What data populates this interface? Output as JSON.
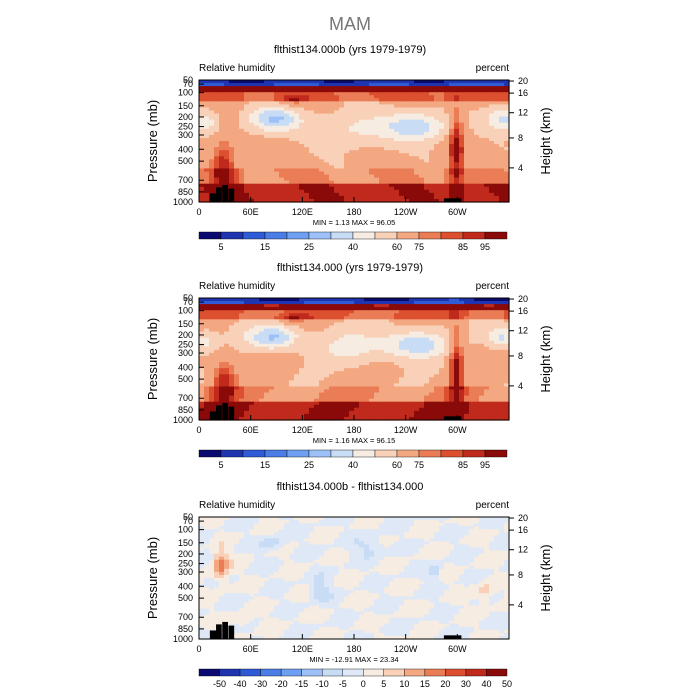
{
  "page_title": "MAM",
  "colors": {
    "title": "#777777",
    "axis": "#000000",
    "topography": "#000000",
    "rh_palette": [
      "#0a0a70",
      "#1f35b0",
      "#2f5cd6",
      "#4a7ee6",
      "#6f9ff0",
      "#9cc0f7",
      "#c9dcf5",
      "#f6ece2",
      "#f8d1b8",
      "#f4a882",
      "#ea7d56",
      "#dc5030",
      "#c02a1c",
      "#8a0a0a"
    ],
    "diff_palette": [
      "#0a0a70",
      "#1f35b0",
      "#2f5cd6",
      "#4a7ee6",
      "#6f9ff0",
      "#9cc0f7",
      "#c9dcf5",
      "#dfe8f6",
      "#f6ece2",
      "#f8d1b8",
      "#f4a882",
      "#ea7d56",
      "#dc5030",
      "#c02a1c",
      "#8a0a0a"
    ]
  },
  "chart_data": [
    {
      "type": "heatmap",
      "title": "flthist134.000b (yrs 1979-1979)",
      "left_label": "Relative humidity",
      "right_label": "percent",
      "ylabel": "Pressure (mb)",
      "ylabel_right": "Height (km)",
      "x_ticks": [
        "0",
        "60E",
        "120E",
        "180",
        "120W",
        "60W"
      ],
      "y_ticks": [
        "50",
        "70",
        "100",
        "150",
        "200",
        "250",
        "300",
        "400",
        "500",
        "700",
        "850",
        "1000"
      ],
      "height_ticks": [
        "20",
        "16",
        "12",
        "8",
        "4"
      ],
      "min": "1.13",
      "max": "96.05",
      "minmax_text": "MIN =    1.13   MAX =   96.05",
      "colorbar_labels": [
        "5",
        "15",
        "25",
        "40",
        "60",
        "75",
        "85",
        "95"
      ],
      "palette": "rh"
    },
    {
      "type": "heatmap",
      "title": "flthist134.000 (yrs 1979-1979)",
      "left_label": "Relative humidity",
      "right_label": "percent",
      "ylabel": "Pressure (mb)",
      "ylabel_right": "Height (km)",
      "x_ticks": [
        "0",
        "60E",
        "120E",
        "180",
        "120W",
        "60W"
      ],
      "y_ticks": [
        "50",
        "70",
        "100",
        "150",
        "200",
        "250",
        "300",
        "400",
        "500",
        "700",
        "850",
        "1000"
      ],
      "height_ticks": [
        "20",
        "16",
        "12",
        "8",
        "4"
      ],
      "min": "1.16",
      "max": "96.15",
      "minmax_text": "MIN =    1.16   MAX =   96.15",
      "colorbar_labels": [
        "5",
        "15",
        "25",
        "40",
        "60",
        "75",
        "85",
        "95"
      ],
      "palette": "rh"
    },
    {
      "type": "heatmap",
      "title": "flthist134.000b - flthist134.000",
      "left_label": "Relative humidity",
      "right_label": "percent",
      "ylabel": "Pressure (mb)",
      "ylabel_right": "Height (km)",
      "x_ticks": [
        "0",
        "60E",
        "120E",
        "180",
        "120W",
        "60W"
      ],
      "y_ticks": [
        "50",
        "70",
        "100",
        "150",
        "200",
        "250",
        "300",
        "400",
        "500",
        "700",
        "850",
        "1000"
      ],
      "height_ticks": [
        "20",
        "16",
        "12",
        "8",
        "4"
      ],
      "min": "-12.91",
      "max": "23.34",
      "minmax_text": "MIN =  -12.91   MAX =   23.34",
      "colorbar_labels": [
        "-50",
        "-40",
        "-30",
        "-20",
        "-15",
        "-10",
        "-5",
        "0",
        "5",
        "10",
        "15",
        "20",
        "30",
        "40",
        "50"
      ],
      "palette": "diff"
    }
  ]
}
